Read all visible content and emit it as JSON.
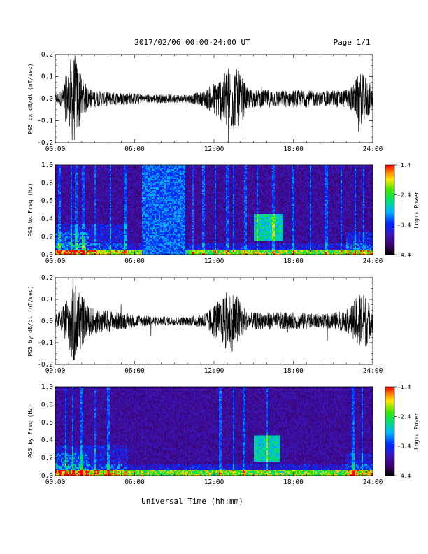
{
  "header": {
    "title": "2017/02/06  00:00-24:00 UT",
    "page": "Page 1/1"
  },
  "x_axis_title": "Universal Time (hh:mm)",
  "colorbar_labels": {
    "top": "-1.4",
    "t2": "-2.4",
    "t3": "-3.4",
    "bottom": "-4.4",
    "title": "Log₁₀ Power"
  },
  "chart_data": [
    {
      "type": "line",
      "ylabel": "PG5 bx dB/dt (nT/sec)",
      "ylim": [
        -0.2,
        0.2
      ],
      "xlim": [
        0,
        24
      ],
      "x_ticks": [
        "00:00",
        "06:00",
        "12:00",
        "18:00",
        "24:00"
      ],
      "y_ticks": [
        "0.2",
        "0.1",
        "0.0",
        "-0.1",
        "-0.2"
      ],
      "series_color": "#000000",
      "x_hours": [
        0,
        0.5,
        1.0,
        1.25,
        1.5,
        2.0,
        2.5,
        3.0,
        4.0,
        5.0,
        6.0,
        7.0,
        8.0,
        9.0,
        10.0,
        11.0,
        11.75,
        12.0,
        12.5,
        13.0,
        13.5,
        14.0,
        14.5,
        15.0,
        16.0,
        17.0,
        18.0,
        19.0,
        20.0,
        21.0,
        22.0,
        22.5,
        23.0,
        23.5,
        24.0
      ],
      "amplitude": [
        0.02,
        0.04,
        0.15,
        0.2,
        0.2,
        0.1,
        0.05,
        0.04,
        0.03,
        0.03,
        0.025,
        0.02,
        0.02,
        0.02,
        0.02,
        0.03,
        0.06,
        0.08,
        0.1,
        0.15,
        0.15,
        0.12,
        0.05,
        0.04,
        0.04,
        0.04,
        0.04,
        0.04,
        0.03,
        0.04,
        0.04,
        0.06,
        0.12,
        0.1,
        0.05
      ]
    },
    {
      "type": "heatmap",
      "ylabel": "PG5 bx Freq (Hz)",
      "ylim": [
        0.0,
        1.0
      ],
      "xlim": [
        0,
        24
      ],
      "x_ticks": [
        "00:00",
        "06:00",
        "12:00",
        "18:00",
        "24:00"
      ],
      "y_ticks": [
        "1.0",
        "0.8",
        "0.6",
        "0.4",
        "0.2",
        "0.0"
      ],
      "colorbar": {
        "min": -4.4,
        "max": -1.4,
        "ticks": [
          -1.4,
          -2.4,
          -3.4,
          -4.4
        ],
        "label": "Log₁₀ Power"
      },
      "features": {
        "low_freq_band_top_hz": 0.05,
        "broadband_block_hours": [
          6.6,
          9.8
        ],
        "enhancement_region": {
          "hours": [
            15.0,
            17.2
          ],
          "freq_hz": [
            0.15,
            0.45
          ]
        },
        "vertical_stripe_hours": [
          0.3,
          1.2,
          1.6,
          2.1,
          3.0,
          4.2,
          5.3,
          10.4,
          11.2,
          12.1,
          13.0,
          13.5,
          14.4,
          15.3,
          16.5,
          18.0,
          19.3,
          20.5,
          21.6,
          22.7,
          23.3
        ]
      }
    },
    {
      "type": "line",
      "ylabel": "PG5 by dB/dt (nT/sec)",
      "ylim": [
        -0.2,
        0.2
      ],
      "xlim": [
        0,
        24
      ],
      "x_ticks": [
        "00:00",
        "06:00",
        "12:00",
        "18:00",
        "24:00"
      ],
      "y_ticks": [
        "0.2",
        "0.1",
        "0.0",
        "-0.1",
        "-0.2"
      ],
      "series_color": "#000000",
      "x_hours": [
        0,
        0.5,
        1.0,
        1.25,
        1.5,
        2.0,
        2.5,
        3.0,
        4.0,
        5.0,
        6.0,
        7.0,
        8.0,
        9.0,
        10.0,
        11.0,
        11.75,
        12.0,
        12.5,
        13.0,
        13.5,
        14.0,
        14.5,
        15.0,
        16.0,
        17.0,
        18.0,
        19.0,
        20.0,
        21.0,
        22.0,
        22.5,
        23.0,
        23.5,
        24.0
      ],
      "amplitude": [
        0.03,
        0.05,
        0.14,
        0.2,
        0.2,
        0.12,
        0.07,
        0.06,
        0.05,
        0.04,
        0.03,
        0.025,
        0.02,
        0.02,
        0.02,
        0.03,
        0.06,
        0.08,
        0.1,
        0.14,
        0.14,
        0.1,
        0.04,
        0.04,
        0.04,
        0.04,
        0.04,
        0.04,
        0.03,
        0.04,
        0.05,
        0.08,
        0.14,
        0.12,
        0.05
      ]
    },
    {
      "type": "heatmap",
      "ylabel": "PG5 by Freq (Hz)",
      "ylim": [
        0.0,
        1.0
      ],
      "xlim": [
        0,
        24
      ],
      "x_ticks": [
        "00:00",
        "06:00",
        "12:00",
        "18:00",
        "24:00"
      ],
      "y_ticks": [
        "1.0",
        "0.8",
        "0.6",
        "0.4",
        "0.2",
        "0.0"
      ],
      "colorbar": {
        "min": -4.4,
        "max": -1.4,
        "ticks": [
          -1.4,
          -2.4,
          -3.4,
          -4.4
        ],
        "label": "Log₁₀ Power"
      },
      "features": {
        "low_freq_band_top_hz": 0.06,
        "enhancement_region": {
          "hours": [
            15.0,
            17.0
          ],
          "freq_hz": [
            0.15,
            0.45
          ]
        },
        "vertical_stripe_hours": [
          0.8,
          1.3,
          2.0,
          3.0,
          4.0,
          12.5,
          13.5,
          14.3,
          16.0,
          22.5,
          23.2
        ]
      }
    }
  ]
}
